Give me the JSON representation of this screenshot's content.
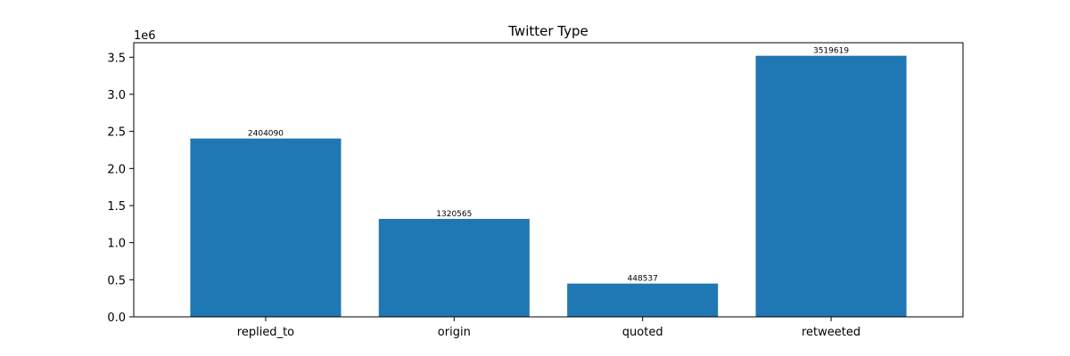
{
  "chart_data": {
    "type": "bar",
    "title": "Twitter Type",
    "xlabel": "",
    "ylabel": "",
    "y_offset_label": "1e6",
    "categories": [
      "replied_to",
      "origin",
      "quoted",
      "retweeted"
    ],
    "values": [
      2404090,
      1320565,
      448537,
      3519619
    ],
    "data_labels": [
      "2404090",
      "1320565",
      "448537",
      "3519619"
    ],
    "y_ticks": [
      0,
      500000,
      1000000,
      1500000,
      2000000,
      2500000,
      3000000,
      3500000
    ],
    "y_tick_labels": [
      "0.0",
      "0.5",
      "1.0",
      "1.5",
      "2.0",
      "2.5",
      "3.0",
      "3.5"
    ],
    "ylim": [
      0,
      3695600
    ],
    "grid": false,
    "bar_color": "#1f77b4"
  }
}
